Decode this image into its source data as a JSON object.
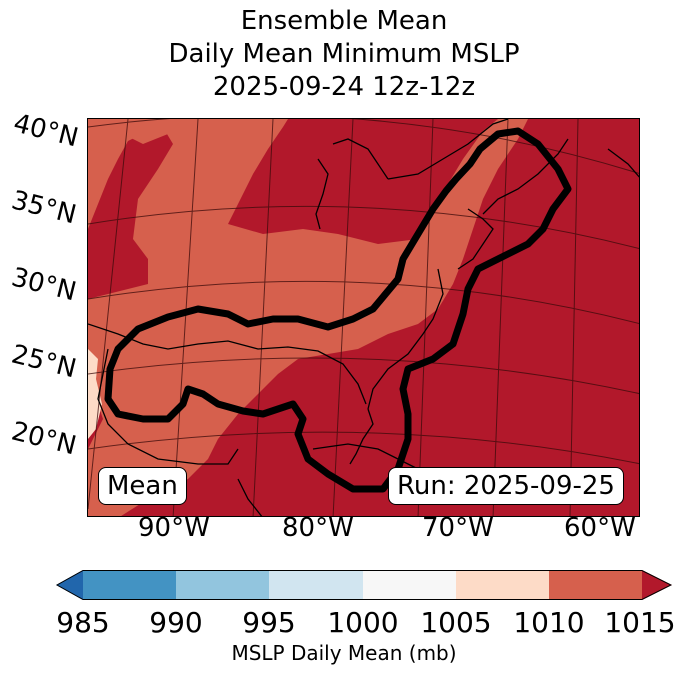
{
  "title": {
    "line1": "Ensemble Mean",
    "line2": "Daily Mean Minimum MSLP",
    "line3": "2025-09-24 12z-12z"
  },
  "map": {
    "lat_labels": [
      "40°N",
      "35°N",
      "30°N",
      "25°N",
      "20°N"
    ],
    "lon_labels": [
      "90°W",
      "80°W",
      "70°W",
      "60°W"
    ],
    "mean_box": "Mean",
    "run_box": "Run: 2025-09-25"
  },
  "colorbar": {
    "ticks": [
      "985",
      "990",
      "995",
      "1000",
      "1005",
      "1010",
      "1015"
    ],
    "label": "MSLP Daily Mean (mb)",
    "colors": [
      "#2166ac",
      "#4393c3",
      "#92c5de",
      "#d1e5f0",
      "#f7f7f7",
      "#fddbc7",
      "#d6604d",
      "#b2182b"
    ]
  },
  "fill_colors": {
    "high": "#b2182b",
    "mid": "#d6604d",
    "low": "#fddbc7"
  }
}
